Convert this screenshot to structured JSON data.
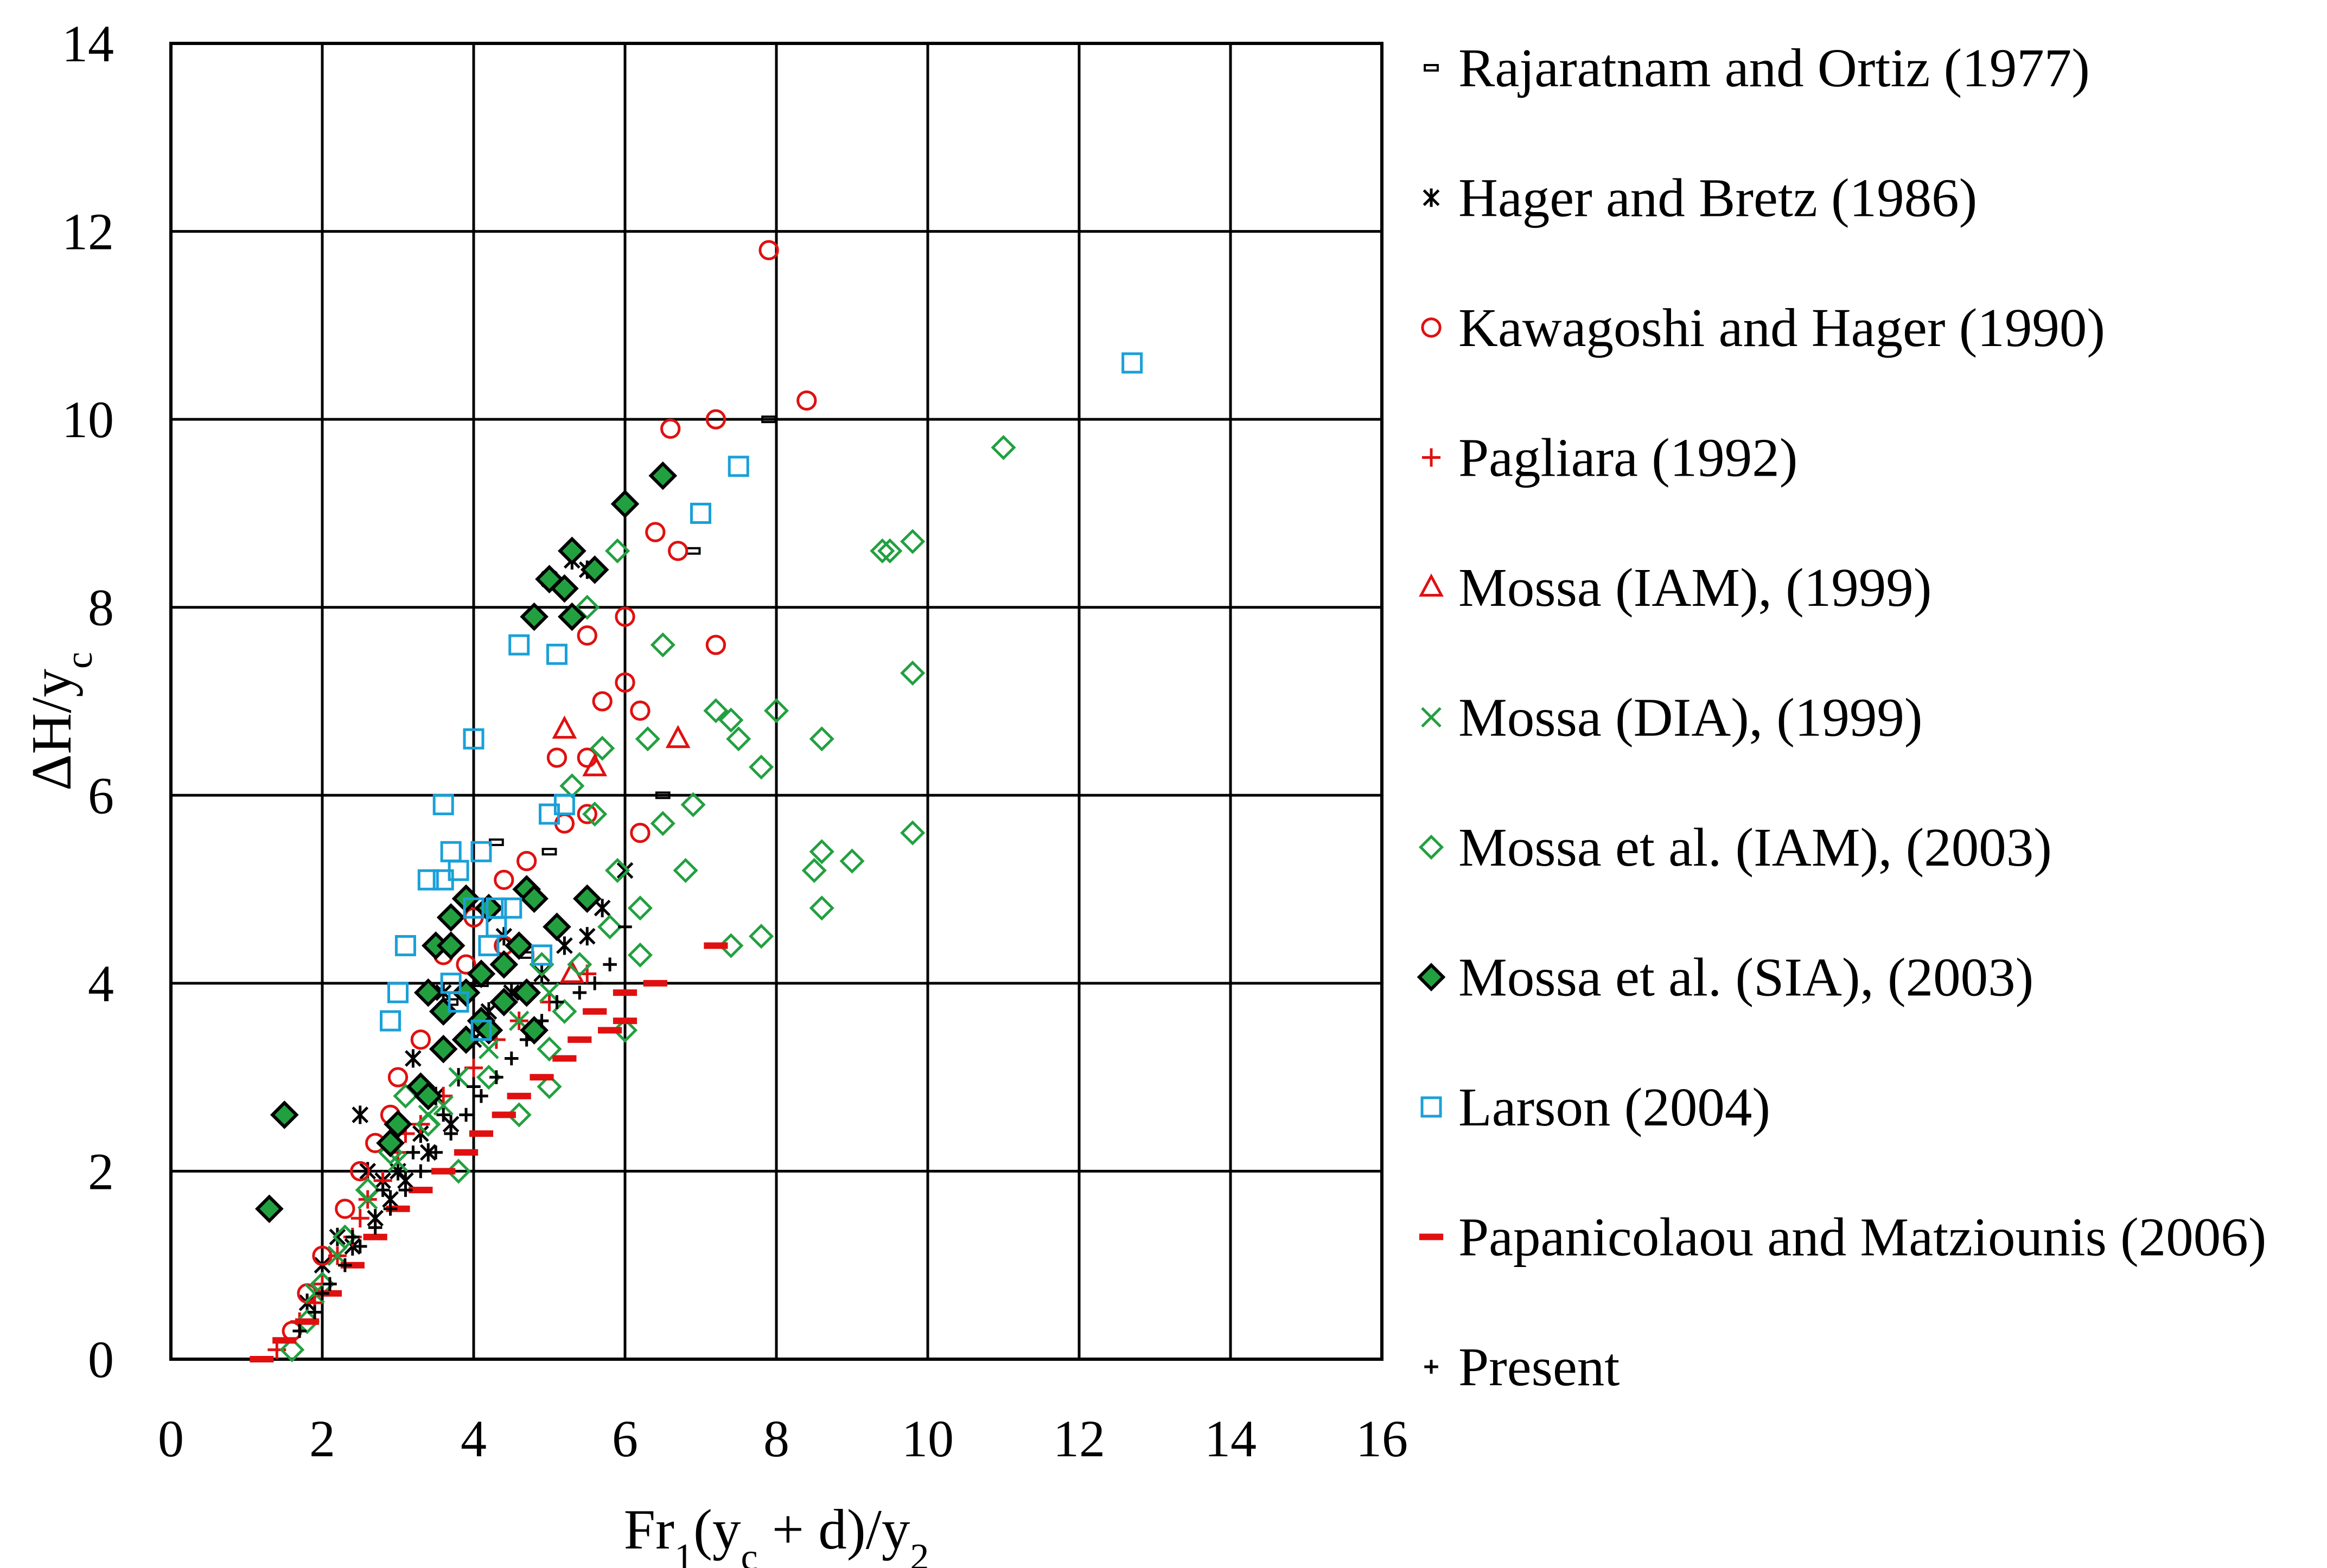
{
  "chart_data": {
    "type": "scatter",
    "xlabel": "Fr₁(y꜀ + d)/y₂",
    "xlabel_parts": {
      "base": "Fr",
      "sub1": "1",
      "mid": "(y",
      "sub2": "c",
      "tail": " + d)/y",
      "sub3": "2"
    },
    "ylabel": "ΔH/y꜀",
    "ylabel_parts": {
      "base": "ΔH/y",
      "sub": "c"
    },
    "xlim": [
      0,
      16
    ],
    "ylim": [
      0,
      14
    ],
    "x_ticks": [
      0,
      2,
      4,
      6,
      8,
      10,
      12,
      14,
      16
    ],
    "y_ticks": [
      0,
      2,
      4,
      6,
      8,
      10,
      12,
      14
    ],
    "grid": true,
    "legend_position": "right",
    "series": [
      {
        "name": "Rajaratnam and Ortiz (1977)",
        "marker": "dash-small",
        "color": "#000000",
        "points": [
          [
            7.9,
            10.0
          ],
          [
            6.9,
            8.6
          ],
          [
            6.5,
            6.0
          ],
          [
            4.3,
            5.5
          ],
          [
            5.0,
            5.4
          ],
          [
            4.7,
            4.3
          ],
          [
            4.1,
            4.0
          ],
          [
            3.7,
            3.8
          ]
        ]
      },
      {
        "name": "Hager and Bretz (1986)",
        "marker": "asterisk",
        "color": "#000000",
        "points": [
          [
            2.7,
            1.5
          ],
          [
            2.9,
            1.7
          ],
          [
            3.0,
            2.0
          ],
          [
            2.8,
            1.9
          ],
          [
            3.3,
            2.4
          ],
          [
            3.5,
            2.8
          ],
          [
            3.8,
            3.0
          ],
          [
            4.0,
            3.4
          ],
          [
            4.2,
            3.7
          ],
          [
            4.5,
            3.9
          ],
          [
            4.9,
            4.1
          ],
          [
            5.2,
            4.4
          ],
          [
            5.5,
            4.5
          ],
          [
            5.7,
            4.8
          ],
          [
            6.0,
            5.2
          ],
          [
            2.5,
            2.6
          ],
          [
            3.2,
            3.2
          ],
          [
            2.2,
            1.3
          ],
          [
            2.0,
            1.0
          ],
          [
            1.8,
            0.6
          ],
          [
            3.6,
            3.9
          ],
          [
            4.4,
            4.5
          ],
          [
            5.0,
            8.3
          ],
          [
            5.3,
            8.5
          ],
          [
            5.5,
            8.4
          ],
          [
            2.6,
            2.0
          ],
          [
            3.4,
            2.2
          ],
          [
            3.7,
            2.5
          ],
          [
            2.4,
            1.2
          ],
          [
            3.1,
            1.9
          ]
        ]
      },
      {
        "name": "Kawagoshi and Hager (1990)",
        "marker": "circle",
        "color": "#e01010",
        "points": [
          [
            7.9,
            11.8
          ],
          [
            7.2,
            10.0
          ],
          [
            8.4,
            10.2
          ],
          [
            6.6,
            9.9
          ],
          [
            6.4,
            8.8
          ],
          [
            6.7,
            8.6
          ],
          [
            5.5,
            7.7
          ],
          [
            6.0,
            7.9
          ],
          [
            7.2,
            7.6
          ],
          [
            5.7,
            7.0
          ],
          [
            6.0,
            7.2
          ],
          [
            6.2,
            6.9
          ],
          [
            5.5,
            6.4
          ],
          [
            5.1,
            6.4
          ],
          [
            5.2,
            5.7
          ],
          [
            5.5,
            5.8
          ],
          [
            6.2,
            5.6
          ],
          [
            4.4,
            5.1
          ],
          [
            4.7,
            5.3
          ],
          [
            4.0,
            4.7
          ],
          [
            3.6,
            4.3
          ],
          [
            3.3,
            3.4
          ],
          [
            3.0,
            3.0
          ],
          [
            2.7,
            2.3
          ],
          [
            2.5,
            2.0
          ],
          [
            2.3,
            1.6
          ],
          [
            2.0,
            1.1
          ],
          [
            1.8,
            0.7
          ],
          [
            1.6,
            0.3
          ],
          [
            3.9,
            4.2
          ],
          [
            4.4,
            4.4
          ],
          [
            2.9,
            2.6
          ]
        ]
      },
      {
        "name": "Pagliara (1992)",
        "marker": "plus",
        "color": "#e01010",
        "points": [
          [
            1.4,
            0.1
          ],
          [
            1.7,
            0.4
          ],
          [
            2.0,
            0.8
          ],
          [
            2.2,
            1.1
          ],
          [
            2.5,
            1.5
          ],
          [
            2.8,
            1.9
          ],
          [
            3.0,
            2.2
          ],
          [
            3.3,
            2.5
          ],
          [
            3.6,
            2.8
          ],
          [
            4.0,
            3.1
          ],
          [
            4.3,
            3.4
          ],
          [
            4.6,
            3.6
          ],
          [
            5.0,
            3.8
          ],
          [
            5.5,
            4.1
          ],
          [
            2.6,
            1.7
          ],
          [
            3.1,
            2.4
          ],
          [
            1.9,
            0.6
          ],
          [
            2.4,
            1.3
          ]
        ]
      },
      {
        "name": "Mossa (IAM), (1999)",
        "marker": "triangle",
        "color": "#e01010",
        "points": [
          [
            5.2,
            6.7
          ],
          [
            5.6,
            6.3
          ],
          [
            6.7,
            6.6
          ],
          [
            5.3,
            4.1
          ]
        ]
      },
      {
        "name": "Mossa (DIA), (1999)",
        "marker": "x",
        "color": "#22a040",
        "points": [
          [
            2.6,
            1.7
          ],
          [
            3.0,
            2.1
          ],
          [
            3.4,
            2.6
          ],
          [
            3.8,
            3.0
          ],
          [
            4.2,
            3.3
          ],
          [
            4.6,
            3.6
          ],
          [
            5.0,
            3.9
          ],
          [
            2.2,
            1.1
          ],
          [
            1.9,
            0.7
          ],
          [
            3.6,
            2.7
          ]
        ]
      },
      {
        "name": "Mossa et al. (IAM), (2003)",
        "marker": "diamond",
        "color": "#22a040",
        "points": [
          [
            11.0,
            9.7
          ],
          [
            9.8,
            8.7
          ],
          [
            9.5,
            8.6
          ],
          [
            9.4,
            8.6
          ],
          [
            9.8,
            7.3
          ],
          [
            8.0,
            6.9
          ],
          [
            7.2,
            6.9
          ],
          [
            7.4,
            6.8
          ],
          [
            7.5,
            6.6
          ],
          [
            7.8,
            6.3
          ],
          [
            8.6,
            6.6
          ],
          [
            6.5,
            7.6
          ],
          [
            5.9,
            8.6
          ],
          [
            5.5,
            8.0
          ],
          [
            5.7,
            6.5
          ],
          [
            6.3,
            6.6
          ],
          [
            6.9,
            5.9
          ],
          [
            6.5,
            5.7
          ],
          [
            6.8,
            5.2
          ],
          [
            5.3,
            6.1
          ],
          [
            5.6,
            5.8
          ],
          [
            5.9,
            5.2
          ],
          [
            8.6,
            5.4
          ],
          [
            8.5,
            5.2
          ],
          [
            9.0,
            5.3
          ],
          [
            9.8,
            5.6
          ],
          [
            8.6,
            4.8
          ],
          [
            7.8,
            4.5
          ],
          [
            7.4,
            4.4
          ],
          [
            6.2,
            4.8
          ],
          [
            6.2,
            4.3
          ],
          [
            6.0,
            3.5
          ],
          [
            5.8,
            4.6
          ],
          [
            5.4,
            4.2
          ],
          [
            5.2,
            3.7
          ],
          [
            5.0,
            3.3
          ],
          [
            5.0,
            2.9
          ],
          [
            4.6,
            2.6
          ],
          [
            4.2,
            3.0
          ],
          [
            3.8,
            2.0
          ],
          [
            3.4,
            2.5
          ],
          [
            3.1,
            2.8
          ],
          [
            2.9,
            2.2
          ],
          [
            2.6,
            1.8
          ],
          [
            2.3,
            1.3
          ],
          [
            2.0,
            0.8
          ],
          [
            1.8,
            0.4
          ],
          [
            1.6,
            0.1
          ],
          [
            4.9,
            4.2
          ],
          [
            4.4,
            3.8
          ]
        ]
      },
      {
        "name": "Mossa et al. (SIA), (2003)",
        "marker": "diamond-filled",
        "color": "#22a040",
        "points": [
          [
            1.5,
            2.6
          ],
          [
            1.3,
            1.6
          ],
          [
            6.5,
            9.4
          ],
          [
            6.0,
            9.1
          ],
          [
            5.3,
            8.6
          ],
          [
            5.6,
            8.4
          ],
          [
            5.0,
            8.3
          ],
          [
            5.2,
            8.2
          ],
          [
            4.8,
            7.9
          ],
          [
            5.3,
            7.9
          ],
          [
            3.5,
            4.4
          ],
          [
            3.7,
            4.7
          ],
          [
            3.9,
            4.9
          ],
          [
            4.2,
            4.8
          ],
          [
            4.7,
            5.0
          ],
          [
            4.8,
            4.9
          ],
          [
            5.1,
            4.6
          ],
          [
            5.5,
            4.9
          ],
          [
            3.4,
            3.9
          ],
          [
            3.6,
            3.7
          ],
          [
            3.9,
            3.9
          ],
          [
            4.1,
            3.6
          ],
          [
            4.4,
            3.8
          ],
          [
            4.7,
            3.9
          ],
          [
            3.3,
            2.9
          ],
          [
            3.6,
            3.3
          ],
          [
            3.9,
            3.4
          ],
          [
            4.2,
            3.5
          ],
          [
            4.8,
            3.5
          ],
          [
            3.0,
            2.5
          ],
          [
            3.4,
            2.8
          ],
          [
            2.9,
            2.3
          ],
          [
            3.7,
            4.4
          ],
          [
            4.1,
            4.1
          ],
          [
            4.4,
            4.2
          ],
          [
            4.6,
            4.4
          ]
        ]
      },
      {
        "name": "Larson (2004)",
        "marker": "square",
        "color": "#1aa0d8",
        "points": [
          [
            12.7,
            10.6
          ],
          [
            7.5,
            9.5
          ],
          [
            7.0,
            9.0
          ],
          [
            4.6,
            7.6
          ],
          [
            5.1,
            7.5
          ],
          [
            4.0,
            6.6
          ],
          [
            3.6,
            5.9
          ],
          [
            5.0,
            5.8
          ],
          [
            5.2,
            5.9
          ],
          [
            3.7,
            5.4
          ],
          [
            4.1,
            5.4
          ],
          [
            3.4,
            5.1
          ],
          [
            3.6,
            5.1
          ],
          [
            3.8,
            5.2
          ],
          [
            4.0,
            4.8
          ],
          [
            4.3,
            4.8
          ],
          [
            4.5,
            4.8
          ],
          [
            3.1,
            4.4
          ],
          [
            4.2,
            4.4
          ],
          [
            4.3,
            4.6
          ],
          [
            4.9,
            4.3
          ],
          [
            3.0,
            3.9
          ],
          [
            3.7,
            4.0
          ],
          [
            2.9,
            3.6
          ],
          [
            3.8,
            3.8
          ],
          [
            4.1,
            3.5
          ]
        ]
      },
      {
        "name": "Papanicolaou and Matziounis (2006)",
        "marker": "dash",
        "color": "#e01010",
        "points": [
          [
            7.2,
            4.4
          ],
          [
            6.4,
            4.0
          ],
          [
            6.0,
            3.9
          ],
          [
            6.0,
            3.6
          ],
          [
            5.8,
            3.5
          ],
          [
            5.4,
            3.4
          ],
          [
            5.2,
            3.2
          ],
          [
            4.9,
            3.0
          ],
          [
            4.6,
            2.8
          ],
          [
            4.4,
            2.6
          ],
          [
            4.1,
            2.4
          ],
          [
            3.9,
            2.2
          ],
          [
            3.6,
            2.0
          ],
          [
            3.3,
            1.8
          ],
          [
            3.0,
            1.6
          ],
          [
            2.7,
            1.3
          ],
          [
            2.4,
            1.0
          ],
          [
            2.1,
            0.7
          ],
          [
            1.8,
            0.4
          ],
          [
            1.5,
            0.2
          ],
          [
            1.2,
            0.0
          ],
          [
            5.6,
            3.7
          ]
        ]
      },
      {
        "name": "Present",
        "marker": "plus-small",
        "color": "#000000",
        "points": [
          [
            6.0,
            4.6
          ],
          [
            5.8,
            4.2
          ],
          [
            5.6,
            4.0
          ],
          [
            5.4,
            3.9
          ],
          [
            5.1,
            3.8
          ],
          [
            4.9,
            3.6
          ],
          [
            4.7,
            3.4
          ],
          [
            4.5,
            3.2
          ],
          [
            4.3,
            3.0
          ],
          [
            4.1,
            2.8
          ],
          [
            3.9,
            2.6
          ],
          [
            3.7,
            2.4
          ],
          [
            3.5,
            2.2
          ],
          [
            3.3,
            2.0
          ],
          [
            3.1,
            1.8
          ],
          [
            2.9,
            1.6
          ],
          [
            2.7,
            1.4
          ],
          [
            2.5,
            1.2
          ],
          [
            2.3,
            1.0
          ],
          [
            2.1,
            0.8
          ],
          [
            1.9,
            0.5
          ],
          [
            1.7,
            0.3
          ],
          [
            4.0,
            2.9
          ],
          [
            3.6,
            2.6
          ],
          [
            3.2,
            2.2
          ],
          [
            2.8,
            1.8
          ],
          [
            2.4,
            1.3
          ],
          [
            2.0,
            0.7
          ]
        ]
      }
    ]
  }
}
